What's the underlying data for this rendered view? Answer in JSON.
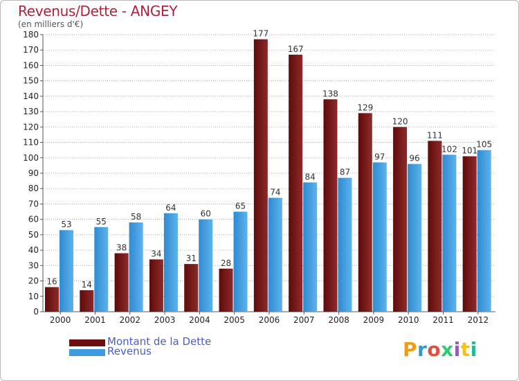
{
  "title": "Revenus/Dette - ANGEY",
  "subtitle": "(en milliers d'€)",
  "logo_text": "Proxiti",
  "colors": {
    "title": "#b1203b",
    "dette": "#7a1818",
    "revenus": "#3f9be0",
    "legend_text": "#4a5ad0",
    "grid": "#999999"
  },
  "legend": [
    {
      "label": "Montant de la Dette",
      "color": "#6b0f0f"
    },
    {
      "label": "Revenus",
      "color": "#3f9be0"
    }
  ],
  "chart_data": {
    "type": "bar",
    "categories": [
      "2000",
      "2001",
      "2002",
      "2003",
      "2004",
      "2005",
      "2006",
      "2007",
      "2008",
      "2009",
      "2010",
      "2011",
      "2012"
    ],
    "series": [
      {
        "name": "Montant de la Dette",
        "values": [
          16,
          14,
          38,
          34,
          31,
          28,
          177,
          167,
          138,
          129,
          120,
          111,
          101
        ]
      },
      {
        "name": "Revenus",
        "values": [
          53,
          55,
          58,
          64,
          60,
          65,
          74,
          84,
          87,
          97,
          96,
          102,
          105
        ]
      }
    ],
    "ylim": [
      0,
      180
    ],
    "yticks": [
      0,
      10,
      20,
      30,
      40,
      50,
      60,
      70,
      80,
      90,
      100,
      110,
      120,
      130,
      140,
      150,
      160,
      170,
      180
    ],
    "grid": "horizontal dotted",
    "legend_position": "bottom-left"
  }
}
